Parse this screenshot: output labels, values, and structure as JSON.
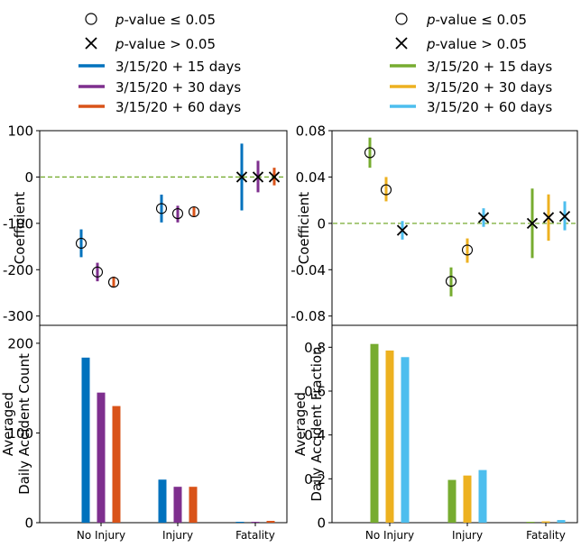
{
  "chart_data": {
    "type": "composite",
    "categories": [
      "No Injury",
      "Injury",
      "Fatality"
    ],
    "legend_left": {
      "markers": [
        {
          "symbol": "circle",
          "label_italic": "p",
          "label_rest": "-value ≤ 0.05"
        },
        {
          "symbol": "x",
          "label_italic": "p",
          "label_rest": "-value > 0.05"
        }
      ],
      "series": [
        {
          "label": "3/15/20 + 15 days",
          "color": "#0072bd"
        },
        {
          "label": "3/15/20 + 30 days",
          "color": "#7e2f8e"
        },
        {
          "label": "3/15/20 + 60 days",
          "color": "#d95319"
        }
      ]
    },
    "legend_right": {
      "markers": [
        {
          "symbol": "circle",
          "label_italic": "p",
          "label_rest": "-value ≤ 0.05"
        },
        {
          "symbol": "x",
          "label_italic": "p",
          "label_rest": "-value > 0.05"
        }
      ],
      "series": [
        {
          "label": "3/15/20 + 15 days",
          "color": "#77ac30"
        },
        {
          "label": "3/15/20 + 30 days",
          "color": "#edb120"
        },
        {
          "label": "3/15/20 + 60 days",
          "color": "#4dbeee"
        }
      ]
    },
    "coef_left": {
      "ylabel": "Coefficient",
      "ylim": [
        -320,
        100
      ],
      "yticks": [
        100,
        0,
        -100,
        -200,
        -300
      ],
      "ytick_labels": [
        "100",
        "0",
        "-100",
        "-200",
        "-300"
      ],
      "zero_line_color": "#77ac30",
      "series": [
        {
          "name": "3/15/20 + 15 days",
          "color": "#0072bd",
          "points": [
            {
              "cat": 0,
              "y": -143,
              "lo": -173,
              "hi": -113,
              "sig": true
            },
            {
              "cat": 1,
              "y": -68,
              "lo": -98,
              "hi": -38,
              "sig": true
            },
            {
              "cat": 2,
              "y": 0,
              "lo": -72,
              "hi": 72,
              "sig": false
            }
          ]
        },
        {
          "name": "3/15/20 + 30 days",
          "color": "#7e2f8e",
          "points": [
            {
              "cat": 0,
              "y": -205,
              "lo": -225,
              "hi": -185,
              "sig": true
            },
            {
              "cat": 1,
              "y": -79,
              "lo": -98,
              "hi": -62,
              "sig": true
            },
            {
              "cat": 2,
              "y": 0,
              "lo": -33,
              "hi": 35,
              "sig": false
            }
          ]
        },
        {
          "name": "3/15/20 + 60 days",
          "color": "#d95319",
          "points": [
            {
              "cat": 0,
              "y": -227,
              "lo": -237,
              "hi": -215,
              "sig": true
            },
            {
              "cat": 1,
              "y": -75,
              "lo": -85,
              "hi": -65,
              "sig": true
            },
            {
              "cat": 2,
              "y": 0,
              "lo": -18,
              "hi": 20,
              "sig": false
            }
          ]
        }
      ]
    },
    "coef_right": {
      "ylabel": "Coefficient",
      "ylim": [
        -0.088,
        0.08
      ],
      "yticks": [
        0.08,
        0.04,
        0,
        -0.04,
        -0.08
      ],
      "ytick_labels": [
        "0.08",
        "0.04",
        "0",
        "-0.04",
        "-0.08"
      ],
      "zero_line_color": "#77ac30",
      "series": [
        {
          "name": "3/15/20 + 15 days",
          "color": "#77ac30",
          "points": [
            {
              "cat": 0,
              "y": 0.061,
              "lo": 0.048,
              "hi": 0.074,
              "sig": true
            },
            {
              "cat": 1,
              "y": -0.05,
              "lo": -0.063,
              "hi": -0.038,
              "sig": true
            },
            {
              "cat": 2,
              "y": 0,
              "lo": -0.03,
              "hi": 0.03,
              "sig": false
            }
          ]
        },
        {
          "name": "3/15/20 + 30 days",
          "color": "#edb120",
          "points": [
            {
              "cat": 0,
              "y": 0.029,
              "lo": 0.019,
              "hi": 0.04,
              "sig": true
            },
            {
              "cat": 1,
              "y": -0.023,
              "lo": -0.034,
              "hi": -0.013,
              "sig": true
            },
            {
              "cat": 2,
              "y": 0.005,
              "lo": -0.015,
              "hi": 0.025,
              "sig": false
            }
          ]
        },
        {
          "name": "3/15/20 + 60 days",
          "color": "#4dbeee",
          "points": [
            {
              "cat": 0,
              "y": -0.006,
              "lo": -0.014,
              "hi": 0.002,
              "sig": false
            },
            {
              "cat": 1,
              "y": 0.005,
              "lo": -0.003,
              "hi": 0.013,
              "sig": false
            },
            {
              "cat": 2,
              "y": 0.006,
              "lo": -0.006,
              "hi": 0.019,
              "sig": false
            }
          ]
        }
      ]
    },
    "bars_left": {
      "ylabel_lines": [
        "Averaged",
        "Daily Accident Count"
      ],
      "ylim": [
        0,
        220
      ],
      "yticks": [
        0,
        100,
        200
      ],
      "ytick_labels": [
        "0",
        "100",
        "200"
      ],
      "series": [
        {
          "name": "3/15/20 + 15 days",
          "color": "#0072bd",
          "values": [
            184,
            48,
            1
          ]
        },
        {
          "name": "3/15/20 + 30 days",
          "color": "#7e2f8e",
          "values": [
            145,
            40,
            1
          ]
        },
        {
          "name": "3/15/20 + 60 days",
          "color": "#d95319",
          "values": [
            130,
            40,
            2
          ]
        }
      ]
    },
    "bars_right": {
      "ylabel_lines": [
        "Averaged",
        "Daily Accident Fraction"
      ],
      "ylim": [
        0,
        0.9
      ],
      "yticks": [
        0,
        0.2,
        0.4,
        0.6,
        0.8
      ],
      "ytick_labels": [
        "0",
        "0.2",
        "0.4",
        "0.6",
        "0.8"
      ],
      "series": [
        {
          "name": "3/15/20 + 15 days",
          "color": "#77ac30",
          "values": [
            0.815,
            0.195,
            0.004
          ]
        },
        {
          "name": "3/15/20 + 30 days",
          "color": "#edb120",
          "values": [
            0.785,
            0.215,
            0.006
          ]
        },
        {
          "name": "3/15/20 + 60 days",
          "color": "#4dbeee",
          "values": [
            0.755,
            0.24,
            0.012
          ]
        }
      ]
    }
  }
}
